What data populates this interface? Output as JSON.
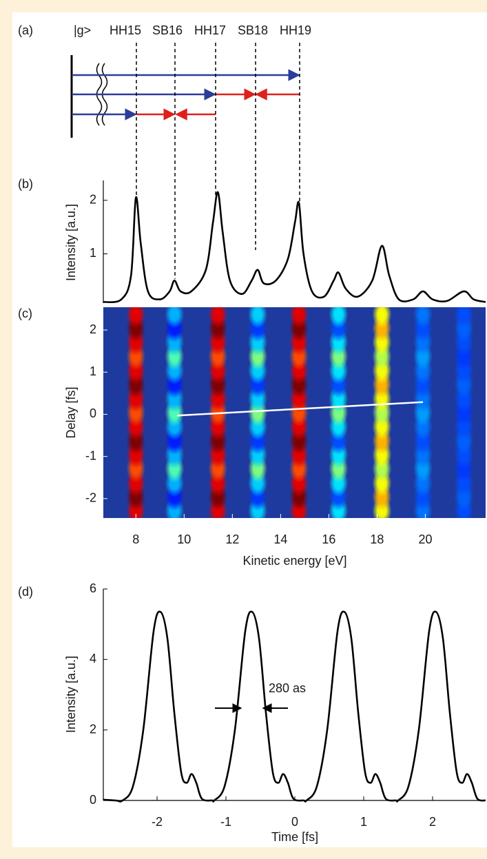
{
  "panels": [
    "(a)",
    "(b)",
    "(c)",
    "(d)"
  ],
  "diagram": {
    "ground_state": "|g>",
    "labels": [
      "HH15",
      "SB16",
      "HH17",
      "SB18",
      "HH19"
    ]
  },
  "chart_data": [
    {
      "type": "line",
      "y_label": "Intensity [a.u.]",
      "color": "#000000",
      "xlim": [
        6.65,
        22.5
      ],
      "ylim": [
        0.08,
        2.37
      ],
      "yticks": [
        1,
        2
      ],
      "x": [
        6.65,
        7.4,
        7.8,
        8.0,
        8.2,
        8.5,
        9.0,
        9.4,
        9.6,
        9.85,
        10.3,
        10.9,
        11.2,
        11.4,
        11.6,
        11.9,
        12.4,
        12.8,
        13.05,
        13.3,
        13.8,
        14.3,
        14.6,
        14.76,
        14.95,
        15.3,
        15.8,
        16.2,
        16.4,
        16.7,
        17.2,
        17.8,
        18.2,
        18.5,
        18.9,
        19.5,
        19.9,
        20.3,
        20.9,
        21.6,
        22.0,
        22.5
      ],
      "values": [
        0.1,
        0.15,
        0.6,
        2.05,
        1.2,
        0.3,
        0.15,
        0.3,
        0.5,
        0.3,
        0.3,
        0.7,
        1.6,
        2.15,
        1.4,
        0.5,
        0.25,
        0.5,
        0.7,
        0.45,
        0.5,
        0.9,
        1.6,
        1.95,
        1.0,
        0.3,
        0.2,
        0.5,
        0.65,
        0.35,
        0.2,
        0.5,
        1.15,
        0.6,
        0.15,
        0.15,
        0.3,
        0.15,
        0.12,
        0.3,
        0.15,
        0.1
      ]
    },
    {
      "type": "heatmap",
      "x_label": "Kinetic energy [eV]",
      "y_label": "Delay [fs]",
      "colormap": "jet",
      "xlim": [
        6.65,
        22.5
      ],
      "ylim": [
        -2.46,
        2.54
      ],
      "xticks": [
        8,
        10,
        12,
        14,
        16,
        18,
        20
      ],
      "yticks": [
        -2,
        -1,
        0,
        1,
        2
      ],
      "zlim": [
        0,
        1
      ],
      "x": [
        8.0,
        9.6,
        11.4,
        13.05,
        14.76,
        16.4,
        18.2,
        19.9,
        21.6
      ],
      "y": [
        -2.29,
        -1.96,
        -1.63,
        -1.29,
        -0.96,
        -0.63,
        -0.29,
        0.04,
        0.37,
        0.71,
        1.04,
        1.37,
        1.71,
        2.04,
        2.37
      ],
      "z": [
        [
          0.9,
          0.3,
          0.9,
          0.33,
          0.9,
          0.35,
          0.62,
          0.24,
          0.2
        ],
        [
          1.0,
          0.15,
          1.0,
          0.18,
          1.0,
          0.2,
          0.7,
          0.2,
          0.22
        ],
        [
          0.9,
          0.3,
          0.9,
          0.33,
          0.9,
          0.35,
          0.62,
          0.24,
          0.2
        ],
        [
          0.8,
          0.45,
          0.8,
          0.5,
          0.8,
          0.5,
          0.55,
          0.28,
          0.18
        ],
        [
          0.9,
          0.3,
          0.9,
          0.33,
          0.9,
          0.35,
          0.62,
          0.24,
          0.2
        ],
        [
          1.0,
          0.15,
          1.0,
          0.18,
          1.0,
          0.2,
          0.7,
          0.2,
          0.22
        ],
        [
          0.9,
          0.3,
          0.9,
          0.33,
          0.9,
          0.35,
          0.62,
          0.24,
          0.2
        ],
        [
          0.8,
          0.45,
          0.8,
          0.5,
          0.8,
          0.5,
          0.55,
          0.28,
          0.18
        ],
        [
          0.9,
          0.3,
          0.9,
          0.33,
          0.9,
          0.35,
          0.62,
          0.24,
          0.2
        ],
        [
          1.0,
          0.15,
          1.0,
          0.18,
          1.0,
          0.2,
          0.7,
          0.2,
          0.22
        ],
        [
          0.9,
          0.3,
          0.9,
          0.33,
          0.9,
          0.35,
          0.62,
          0.24,
          0.2
        ],
        [
          0.8,
          0.45,
          0.8,
          0.5,
          0.8,
          0.5,
          0.55,
          0.28,
          0.18
        ],
        [
          0.9,
          0.3,
          0.9,
          0.33,
          0.9,
          0.35,
          0.62,
          0.24,
          0.2
        ],
        [
          1.0,
          0.15,
          1.0,
          0.18,
          1.0,
          0.2,
          0.7,
          0.2,
          0.22
        ],
        [
          0.9,
          0.3,
          0.9,
          0.33,
          0.9,
          0.35,
          0.62,
          0.24,
          0.2
        ]
      ],
      "line": {
        "x": [
          9.71,
          19.9
        ],
        "y": [
          -0.03,
          0.29
        ],
        "color": "#ffffff"
      }
    },
    {
      "type": "line",
      "x_label": "Time [fs]",
      "y_label": "Intensity [a.u.]",
      "annotation": "280 as",
      "color": "#000000",
      "xlim": [
        -2.78,
        2.77
      ],
      "ylim": [
        0,
        6
      ],
      "xticks": [
        -2,
        -1,
        0,
        1,
        2
      ],
      "yticks": [
        0,
        2,
        4,
        6
      ],
      "x": [
        -2.78,
        -2.6,
        -2.5,
        -2.35,
        -2.2,
        -2.05,
        -1.95,
        -1.85,
        -1.75,
        -1.65,
        -1.57,
        -1.5,
        -1.43,
        -1.35,
        -1.2,
        -1.17,
        -1.02,
        -0.87,
        -0.72,
        -0.62,
        -0.52,
        -0.42,
        -0.32,
        -0.24,
        -0.17,
        -0.1,
        -0.02,
        0.13,
        0.17,
        0.32,
        0.47,
        0.62,
        0.72,
        0.82,
        0.92,
        1.02,
        1.1,
        1.17,
        1.24,
        1.32,
        1.47,
        1.5,
        1.65,
        1.8,
        1.95,
        2.05,
        2.15,
        2.25,
        2.35,
        2.43,
        2.5,
        2.57,
        2.65,
        2.77
      ],
      "values": [
        0.02,
        0,
        0,
        0.4,
        2.0,
        4.8,
        5.35,
        4.6,
        2.5,
        0.8,
        0.5,
        0.75,
        0.5,
        0.05,
        0,
        0,
        0.4,
        2.0,
        4.8,
        5.35,
        4.6,
        2.5,
        0.8,
        0.5,
        0.75,
        0.5,
        0.05,
        0,
        0,
        0.4,
        2.0,
        4.8,
        5.35,
        4.6,
        2.5,
        0.8,
        0.5,
        0.75,
        0.5,
        0.05,
        0,
        0,
        0.4,
        2.0,
        4.8,
        5.35,
        4.6,
        2.5,
        0.8,
        0.5,
        0.75,
        0.5,
        0.05,
        0
      ]
    }
  ]
}
